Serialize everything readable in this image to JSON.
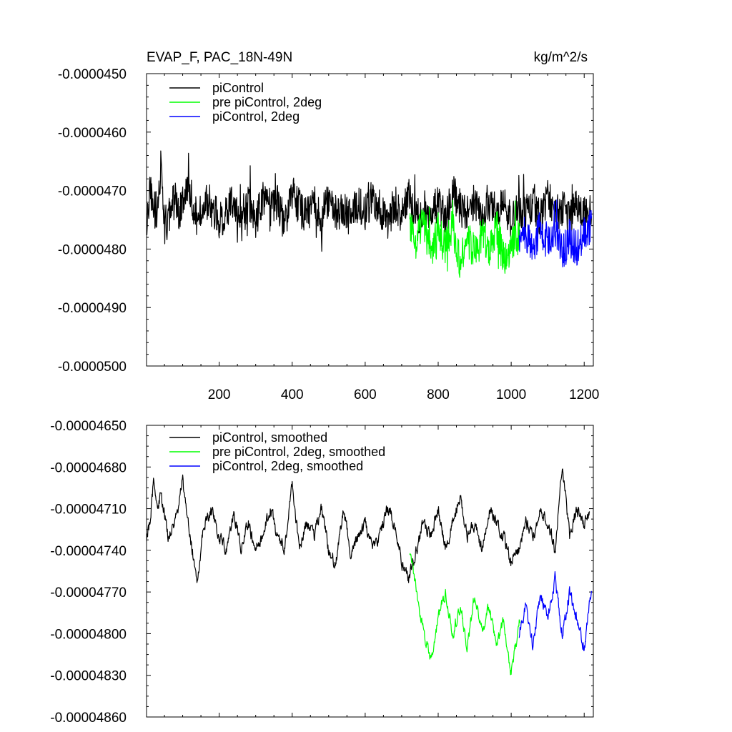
{
  "chart_data": [
    {
      "type": "line",
      "title": "EVAP_F, PAC_18N-49N",
      "units": "kg/m^2/s",
      "xlim": [
        1,
        1225
      ],
      "ylim": [
        -5e-05,
        -4.5e-05
      ],
      "x_ticks": [
        200,
        400,
        600,
        800,
        1000,
        1200
      ],
      "x_tick_labels": [
        "200",
        "400",
        "600",
        "800",
        "1000",
        "1200"
      ],
      "y_ticks": [
        -4.5e-05,
        -4.6e-05,
        -4.7e-05,
        -4.8e-05,
        -4.9e-05,
        -5e-05
      ],
      "y_tick_labels": [
        "-0.0000450",
        "-0.0000460",
        "-0.0000470",
        "-0.0000480",
        "-0.0000490",
        "-0.0000500"
      ],
      "legend_position": "top-left",
      "series": [
        {
          "name": "piControl",
          "color": "#000000",
          "x_range": [
            1,
            1220
          ],
          "points": [
            [
              1,
              -4.78e-05
            ],
            [
              10,
              -4.7e-05
            ],
            [
              20,
              -4.72e-05
            ],
            [
              30,
              -4.74e-05
            ],
            [
              40,
              -4.66e-05
            ],
            [
              50,
              -4.76e-05
            ],
            [
              60,
              -4.75e-05
            ],
            [
              70,
              -4.73e-05
            ],
            [
              80,
              -4.71e-05
            ],
            [
              90,
              -4.74e-05
            ],
            [
              100,
              -4.72e-05
            ],
            [
              120,
              -4.7e-05
            ],
            [
              140,
              -4.75e-05
            ],
            [
              160,
              -4.72e-05
            ],
            [
              180,
              -4.73e-05
            ],
            [
              200,
              -4.75e-05
            ],
            [
              220,
              -4.74e-05
            ],
            [
              240,
              -4.71e-05
            ],
            [
              260,
              -4.76e-05
            ],
            [
              280,
              -4.72e-05
            ],
            [
              300,
              -4.75e-05
            ],
            [
              320,
              -4.71e-05
            ],
            [
              340,
              -4.73e-05
            ],
            [
              360,
              -4.72e-05
            ],
            [
              380,
              -4.76e-05
            ],
            [
              400,
              -4.7e-05
            ],
            [
              420,
              -4.73e-05
            ],
            [
              440,
              -4.74e-05
            ],
            [
              460,
              -4.72e-05
            ],
            [
              480,
              -4.75e-05
            ],
            [
              500,
              -4.71e-05
            ],
            [
              520,
              -4.74e-05
            ],
            [
              540,
              -4.73e-05
            ],
            [
              560,
              -4.75e-05
            ],
            [
              580,
              -4.72e-05
            ],
            [
              600,
              -4.74e-05
            ],
            [
              620,
              -4.71e-05
            ],
            [
              640,
              -4.73e-05
            ],
            [
              660,
              -4.76e-05
            ],
            [
              680,
              -4.72e-05
            ],
            [
              700,
              -4.74e-05
            ],
            [
              720,
              -4.71e-05
            ],
            [
              740,
              -4.75e-05
            ],
            [
              760,
              -4.73e-05
            ],
            [
              780,
              -4.74e-05
            ],
            [
              800,
              -4.72e-05
            ],
            [
              820,
              -4.75e-05
            ],
            [
              840,
              -4.7e-05
            ],
            [
              860,
              -4.73e-05
            ],
            [
              880,
              -4.74e-05
            ],
            [
              900,
              -4.72e-05
            ],
            [
              920,
              -4.75e-05
            ],
            [
              940,
              -4.71e-05
            ],
            [
              960,
              -4.74e-05
            ],
            [
              980,
              -4.72e-05
            ],
            [
              1000,
              -4.75e-05
            ],
            [
              1020,
              -4.73e-05
            ],
            [
              1040,
              -4.74e-05
            ],
            [
              1060,
              -4.72e-05
            ],
            [
              1080,
              -4.75e-05
            ],
            [
              1100,
              -4.71e-05
            ],
            [
              1120,
              -4.74e-05
            ],
            [
              1140,
              -4.73e-05
            ],
            [
              1160,
              -4.75e-05
            ],
            [
              1180,
              -4.72e-05
            ],
            [
              1200,
              -4.74e-05
            ],
            [
              1220,
              -4.73e-05
            ]
          ]
        },
        {
          "name": "pre piControl, 2deg",
          "color": "#00ff00",
          "x_range": [
            722,
            1024
          ],
          "points": [
            [
              722,
              -4.76e-05
            ],
            [
              740,
              -4.79e-05
            ],
            [
              760,
              -4.75e-05
            ],
            [
              780,
              -4.81e-05
            ],
            [
              800,
              -4.77e-05
            ],
            [
              820,
              -4.8e-05
            ],
            [
              840,
              -4.76e-05
            ],
            [
              860,
              -4.82e-05
            ],
            [
              880,
              -4.78e-05
            ],
            [
              900,
              -4.81e-05
            ],
            [
              920,
              -4.77e-05
            ],
            [
              940,
              -4.8e-05
            ],
            [
              960,
              -4.76e-05
            ],
            [
              980,
              -4.82e-05
            ],
            [
              1000,
              -4.79e-05
            ],
            [
              1024,
              -4.78e-05
            ]
          ]
        },
        {
          "name": "piControl, 2deg",
          "color": "#0000ff",
          "x_range": [
            1022,
            1220
          ],
          "points": [
            [
              1022,
              -4.79e-05
            ],
            [
              1040,
              -4.77e-05
            ],
            [
              1060,
              -4.8e-05
            ],
            [
              1080,
              -4.76e-05
            ],
            [
              1100,
              -4.79e-05
            ],
            [
              1120,
              -4.77e-05
            ],
            [
              1140,
              -4.81e-05
            ],
            [
              1160,
              -4.78e-05
            ],
            [
              1180,
              -4.8e-05
            ],
            [
              1200,
              -4.77e-05
            ],
            [
              1220,
              -4.76e-05
            ]
          ]
        }
      ]
    },
    {
      "type": "line",
      "xlim": [
        1,
        1225
      ],
      "ylim": [
        -4.86e-05,
        -4.65e-05
      ],
      "y_ticks": [
        -4.65e-05,
        -4.68e-05,
        -4.71e-05,
        -4.74e-05,
        -4.77e-05,
        -4.8e-05,
        -4.83e-05,
        -4.86e-05
      ],
      "y_tick_labels": [
        "-0.00004650",
        "-0.00004680",
        "-0.00004710",
        "-0.00004740",
        "-0.00004770",
        "-0.00004800",
        "-0.00004830",
        "-0.00004860"
      ],
      "legend_position": "top-left",
      "series": [
        {
          "name": "piControl, smoothed",
          "color": "#000000",
          "points": [
            [
              1,
              -4.73e-05
            ],
            [
              10,
              -4.72e-05
            ],
            [
              20,
              -4.69e-05
            ],
            [
              30,
              -4.71e-05
            ],
            [
              40,
              -4.7e-05
            ],
            [
              60,
              -4.73e-05
            ],
            [
              80,
              -4.72e-05
            ],
            [
              100,
              -4.69e-05
            ],
            [
              120,
              -4.73e-05
            ],
            [
              140,
              -4.76e-05
            ],
            [
              160,
              -4.72e-05
            ],
            [
              180,
              -4.71e-05
            ],
            [
              200,
              -4.73e-05
            ],
            [
              220,
              -4.74e-05
            ],
            [
              240,
              -4.71e-05
            ],
            [
              260,
              -4.74e-05
            ],
            [
              280,
              -4.72e-05
            ],
            [
              300,
              -4.74e-05
            ],
            [
              320,
              -4.73e-05
            ],
            [
              340,
              -4.71e-05
            ],
            [
              360,
              -4.73e-05
            ],
            [
              380,
              -4.74e-05
            ],
            [
              400,
              -4.69e-05
            ],
            [
              420,
              -4.74e-05
            ],
            [
              440,
              -4.72e-05
            ],
            [
              460,
              -4.73e-05
            ],
            [
              480,
              -4.71e-05
            ],
            [
              500,
              -4.74e-05
            ],
            [
              520,
              -4.75e-05
            ],
            [
              540,
              -4.71e-05
            ],
            [
              560,
              -4.74e-05
            ],
            [
              580,
              -4.73e-05
            ],
            [
              600,
              -4.72e-05
            ],
            [
              620,
              -4.74e-05
            ],
            [
              640,
              -4.73e-05
            ],
            [
              660,
              -4.71e-05
            ],
            [
              680,
              -4.72e-05
            ],
            [
              700,
              -4.75e-05
            ],
            [
              720,
              -4.76e-05
            ],
            [
              740,
              -4.74e-05
            ],
            [
              760,
              -4.72e-05
            ],
            [
              780,
              -4.73e-05
            ],
            [
              800,
              -4.71e-05
            ],
            [
              820,
              -4.74e-05
            ],
            [
              840,
              -4.72e-05
            ],
            [
              860,
              -4.7e-05
            ],
            [
              880,
              -4.73e-05
            ],
            [
              900,
              -4.72e-05
            ],
            [
              920,
              -4.74e-05
            ],
            [
              940,
              -4.71e-05
            ],
            [
              960,
              -4.72e-05
            ],
            [
              980,
              -4.73e-05
            ],
            [
              1000,
              -4.75e-05
            ],
            [
              1020,
              -4.74e-05
            ],
            [
              1040,
              -4.72e-05
            ],
            [
              1060,
              -4.73e-05
            ],
            [
              1080,
              -4.71e-05
            ],
            [
              1100,
              -4.72e-05
            ],
            [
              1120,
              -4.74e-05
            ],
            [
              1140,
              -4.68e-05
            ],
            [
              1160,
              -4.73e-05
            ],
            [
              1180,
              -4.71e-05
            ],
            [
              1200,
              -4.72e-05
            ],
            [
              1215,
              -4.71e-05
            ]
          ]
        },
        {
          "name": "pre piControl, 2deg, smoothed",
          "color": "#00ff00",
          "points": [
            [
              722,
              -4.74e-05
            ],
            [
              740,
              -4.77e-05
            ],
            [
              760,
              -4.8e-05
            ],
            [
              780,
              -4.82e-05
            ],
            [
              800,
              -4.79e-05
            ],
            [
              820,
              -4.77e-05
            ],
            [
              840,
              -4.8e-05
            ],
            [
              860,
              -4.78e-05
            ],
            [
              880,
              -4.81e-05
            ],
            [
              900,
              -4.77e-05
            ],
            [
              920,
              -4.8e-05
            ],
            [
              940,
              -4.78e-05
            ],
            [
              960,
              -4.81e-05
            ],
            [
              980,
              -4.79e-05
            ],
            [
              1000,
              -4.83e-05
            ],
            [
              1024,
              -4.79e-05
            ]
          ]
        },
        {
          "name": "piControl, 2deg, smoothed",
          "color": "#0000ff",
          "points": [
            [
              1022,
              -4.8e-05
            ],
            [
              1040,
              -4.78e-05
            ],
            [
              1060,
              -4.81e-05
            ],
            [
              1080,
              -4.77e-05
            ],
            [
              1100,
              -4.79e-05
            ],
            [
              1120,
              -4.76e-05
            ],
            [
              1140,
              -4.8e-05
            ],
            [
              1160,
              -4.77e-05
            ],
            [
              1180,
              -4.79e-05
            ],
            [
              1200,
              -4.81e-05
            ],
            [
              1220,
              -4.77e-05
            ]
          ]
        }
      ]
    }
  ]
}
